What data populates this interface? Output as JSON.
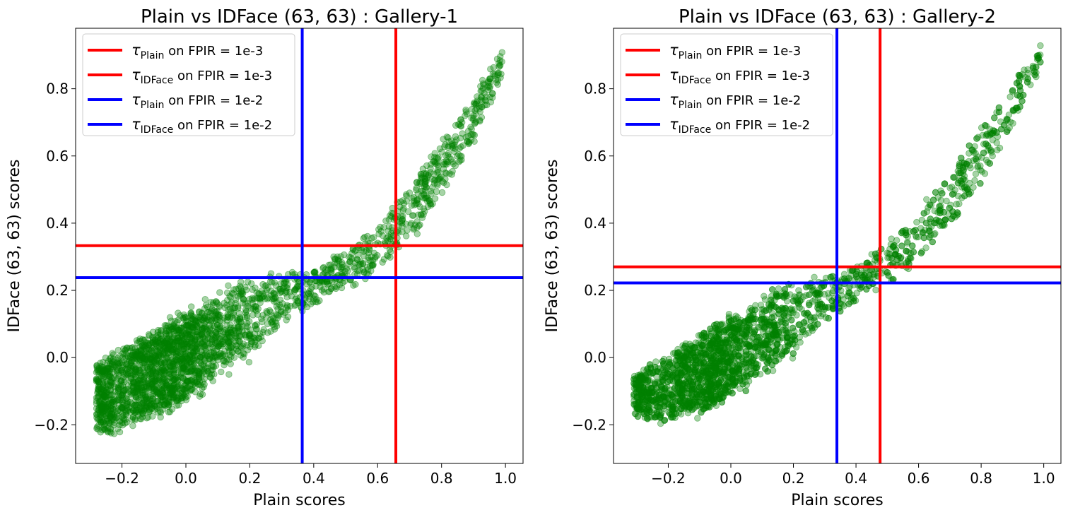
{
  "chart_data": [
    {
      "type": "scatter",
      "title": "Plain vs IDFace (63, 63) : Gallery-1",
      "xlabel": "Plain scores",
      "ylabel": "IDFace (63, 63) scores",
      "xlim": [
        -0.345,
        1.055
      ],
      "ylim": [
        -0.315,
        0.98
      ],
      "xticks": [
        -0.2,
        0.0,
        0.2,
        0.4,
        0.6,
        0.8,
        1.0
      ],
      "xtick_labels": [
        "−0.2",
        "0.0",
        "0.2",
        "0.4",
        "0.6",
        "0.8",
        "1.0"
      ],
      "yticks": [
        -0.2,
        0.0,
        0.2,
        0.4,
        0.6,
        0.8
      ],
      "ytick_labels": [
        "−0.2",
        "0.0",
        "0.2",
        "0.4",
        "0.6",
        "0.8"
      ],
      "grid": false,
      "legend_position": "top-left",
      "scatter_color": "#008000",
      "scatter_trend": {
        "x": [
          -0.28,
          -0.2,
          -0.1,
          0.0,
          0.1,
          0.2,
          0.3,
          0.4,
          0.5,
          0.6,
          0.7,
          0.8,
          0.9,
          0.99
        ],
        "y": [
          -0.12,
          -0.09,
          -0.05,
          0.0,
          0.06,
          0.12,
          0.17,
          0.21,
          0.26,
          0.33,
          0.43,
          0.56,
          0.71,
          0.88
        ],
        "spread": [
          0.1,
          0.12,
          0.13,
          0.13,
          0.12,
          0.11,
          0.08,
          0.05,
          0.06,
          0.07,
          0.08,
          0.08,
          0.07,
          0.04
        ]
      },
      "thresholds": [
        {
          "axis": "x",
          "value": 0.657,
          "color": "#ff0000",
          "label_sub": "Plain",
          "label_rest": " on FPIR = 1e-3"
        },
        {
          "axis": "y",
          "value": 0.333,
          "color": "#ff0000",
          "label_sub": "IDFace",
          "label_rest": " on FPIR = 1e-3"
        },
        {
          "axis": "x",
          "value": 0.364,
          "color": "#0000ff",
          "label_sub": "Plain",
          "label_rest": " on FPIR = 1e-2"
        },
        {
          "axis": "y",
          "value": 0.238,
          "color": "#0000ff",
          "label_sub": "IDFace",
          "label_rest": " on FPIR = 1e-2"
        }
      ]
    },
    {
      "type": "scatter",
      "title": "Plain vs IDFace (63, 63) : Gallery-2",
      "xlabel": "Plain scores",
      "ylabel": "IDFace (63, 63) scores",
      "xlim": [
        -0.375,
        1.055
      ],
      "ylim": [
        -0.315,
        0.98
      ],
      "xticks": [
        -0.2,
        0.0,
        0.2,
        0.4,
        0.6,
        0.8,
        1.0
      ],
      "xtick_labels": [
        "−0.2",
        "0.0",
        "0.2",
        "0.4",
        "0.6",
        "0.8",
        "1.0"
      ],
      "yticks": [
        -0.2,
        0.0,
        0.2,
        0.4,
        0.6,
        0.8
      ],
      "ytick_labels": [
        "−0.2",
        "0.0",
        "0.2",
        "0.4",
        "0.6",
        "0.8"
      ],
      "grid": false,
      "legend_position": "top-left",
      "scatter_color": "#008000",
      "scatter_trend": {
        "x": [
          -0.31,
          -0.2,
          -0.1,
          0.0,
          0.1,
          0.2,
          0.3,
          0.4,
          0.5,
          0.6,
          0.7,
          0.8,
          0.9,
          0.99
        ],
        "y": [
          -0.11,
          -0.09,
          -0.05,
          0.0,
          0.06,
          0.12,
          0.17,
          0.22,
          0.28,
          0.36,
          0.47,
          0.6,
          0.75,
          0.9
        ],
        "spread": [
          0.06,
          0.1,
          0.12,
          0.12,
          0.11,
          0.1,
          0.07,
          0.05,
          0.06,
          0.07,
          0.08,
          0.08,
          0.07,
          0.04
        ]
      },
      "thresholds": [
        {
          "axis": "x",
          "value": 0.477,
          "color": "#ff0000",
          "label_sub": "Plain",
          "label_rest": " on FPIR = 1e-3"
        },
        {
          "axis": "y",
          "value": 0.27,
          "color": "#ff0000",
          "label_sub": "IDFace",
          "label_rest": " on FPIR = 1e-3"
        },
        {
          "axis": "x",
          "value": 0.339,
          "color": "#0000ff",
          "label_sub": "Plain",
          "label_rest": " on FPIR = 1e-2"
        },
        {
          "axis": "y",
          "value": 0.222,
          "color": "#0000ff",
          "label_sub": "IDFace",
          "label_rest": " on FPIR = 1e-2"
        }
      ]
    }
  ]
}
